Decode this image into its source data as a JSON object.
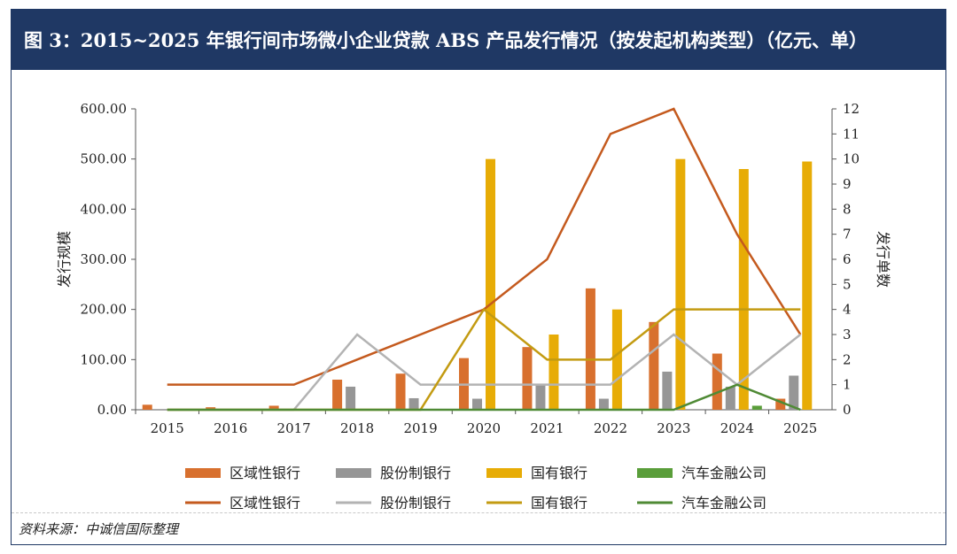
{
  "title": "图 3：2015~2025 年银行间市场微小企业贷款 ABS 产品发行情况（按发起机构类型）（亿元、单）",
  "source": "资料来源：中诚信国际整理",
  "chart_data": {
    "type": "bar",
    "categories": [
      "2015",
      "2016",
      "2017",
      "2018",
      "2019",
      "2020",
      "2021",
      "2022",
      "2023",
      "2024",
      "2025"
    ],
    "ylabel": "发行规模",
    "y2label": "发行单数",
    "ylim": [
      0,
      600
    ],
    "y2lim": [
      0,
      12
    ],
    "yticks": [
      "0.00",
      "100.00",
      "200.00",
      "300.00",
      "400.00",
      "500.00",
      "600.00"
    ],
    "y2ticks": [
      "0",
      "1",
      "2",
      "3",
      "4",
      "5",
      "6",
      "7",
      "8",
      "9",
      "10",
      "11",
      "12"
    ],
    "bar_series": [
      {
        "name": "区域性银行",
        "color": "#d8702e",
        "values": [
          10,
          5,
          8,
          60,
          72,
          103,
          125,
          242,
          175,
          112,
          22
        ]
      },
      {
        "name": "股份制银行",
        "color": "#969696",
        "values": [
          0,
          0,
          0,
          46,
          23,
          22,
          52,
          22,
          76,
          46,
          68
        ]
      },
      {
        "name": "国有银行",
        "color": "#e7ac06",
        "values": [
          0,
          0,
          0,
          0,
          0,
          500,
          150,
          200,
          500,
          480,
          495
        ]
      },
      {
        "name": "汽车金融公司",
        "color": "#5a9e3a",
        "values": [
          0,
          0,
          0,
          0,
          0,
          0,
          0,
          0,
          0,
          8,
          0
        ]
      }
    ],
    "line_series": [
      {
        "name": "区域性银行",
        "color": "#c45a1e",
        "values": [
          1,
          1,
          1,
          2,
          3,
          4,
          6,
          11,
          12,
          7,
          3
        ]
      },
      {
        "name": "股份制银行",
        "color": "#b3b3b3",
        "values": [
          0,
          0,
          0,
          3,
          1,
          1,
          1,
          1,
          3,
          1,
          3
        ]
      },
      {
        "name": "国有银行",
        "color": "#c39b12",
        "values": [
          0,
          0,
          0,
          0,
          0,
          4,
          2,
          2,
          4,
          4,
          4
        ]
      },
      {
        "name": "汽车金融公司",
        "color": "#4f8a35",
        "values": [
          0,
          0,
          0,
          0,
          0,
          0,
          0,
          0,
          0,
          1,
          0
        ]
      }
    ],
    "legend_position": "bottom",
    "grid": false
  }
}
